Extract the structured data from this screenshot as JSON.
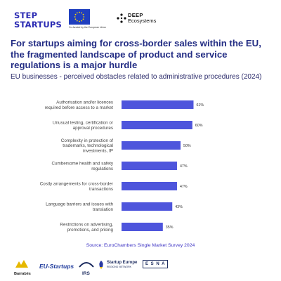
{
  "header": {
    "logo_step_line1": "STEP",
    "logo_step_line2": "STARTUPS",
    "logo_eu_caption": "Co-funded by the European Union",
    "logo_deep_line1": "DEEP",
    "logo_deep_line2": "Ecosystems"
  },
  "colors": {
    "bar": "#4e55dc",
    "title": "#232d84",
    "source": "#3d33c4"
  },
  "chart_data": {
    "type": "bar",
    "orientation": "horizontal",
    "title": "For startups aiming for cross-border sales within the EU, the fragmented landscape of product and service regulations is a major hurdle",
    "subtitle": "EU businesses - perceived obstacles related to administrative procedures (2024)",
    "categories": [
      [
        "Authorisation and/or licences",
        "required before access to a market"
      ],
      [
        "Unusual testing, certification or",
        "approval procedures"
      ],
      [
        "Complexity in protection of",
        "trademarks, technological",
        "investments, IP"
      ],
      [
        "Cumbersome health and safety",
        "regulations"
      ],
      [
        "Costly arrangements for cross-border",
        "transactions"
      ],
      [
        "Language barriers and issues with",
        "translation"
      ],
      [
        "Restrictions on advertising,",
        "promotions, and pricing"
      ]
    ],
    "values": [
      61,
      60,
      50,
      47,
      47,
      43,
      35
    ],
    "value_labels": [
      "61%",
      "60%",
      "50%",
      "47%",
      "47%",
      "43%",
      "35%"
    ],
    "unit": "%",
    "xlim": [
      0,
      100
    ],
    "grid": false,
    "legend": "none",
    "source": "Source: EuroChambers Single Market Survey 2024"
  },
  "footer": {
    "logos": [
      "Barrabés",
      "EU-Startups",
      "IRS",
      "Startup Europe",
      "Regions Network",
      "E S N A"
    ]
  }
}
